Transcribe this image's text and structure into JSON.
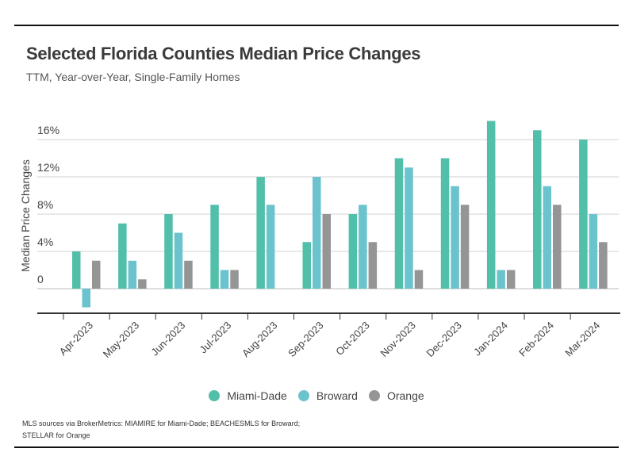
{
  "title": "Selected Florida Counties Median Price Changes",
  "subtitle": "TTM, Year-over-Year, Single-Family Homes",
  "source_line1": "MLS sources via BrokerMetrics: MIAMIRE for Miami-Dade; BEACHESMLS for Broward;",
  "source_line2": "STELLAR for Orange",
  "colors": {
    "miami_dade": "#52bfaa",
    "broward": "#6bc3cd",
    "orange": "#959595"
  },
  "legend": [
    {
      "label": "Miami-Dade",
      "color": "#52bfaa"
    },
    {
      "label": "Broward",
      "color": "#6bc3cd"
    },
    {
      "label": "Orange",
      "color": "#959595"
    }
  ],
  "chart_data": {
    "type": "bar",
    "title": "Selected Florida Counties Median Price Changes",
    "subtitle": "TTM, Year-over-Year, Single-Family Homes",
    "xlabel": "",
    "ylabel": "Median Price Changes",
    "ylim": [
      -4,
      18
    ],
    "yticks": [
      0,
      4,
      8,
      12,
      16
    ],
    "ytick_labels": [
      "0",
      "4%",
      "8%",
      "12%",
      "16%"
    ],
    "grid": true,
    "legend_position": "bottom",
    "categories": [
      "Apr-2023",
      "May-2023",
      "Jun-2023",
      "Jul-2023",
      "Aug-2023",
      "Sep-2023",
      "Oct-2023",
      "Nov-2023",
      "Dec-2023",
      "Jan-2024",
      "Feb-2024",
      "Mar-2024"
    ],
    "series": [
      {
        "name": "Miami-Dade",
        "values": [
          4,
          7,
          8,
          9,
          12,
          5,
          8,
          14,
          14,
          18,
          17,
          16
        ]
      },
      {
        "name": "Broward",
        "values": [
          -2,
          3,
          6,
          2,
          9,
          12,
          9,
          13,
          11,
          2,
          11,
          8
        ]
      },
      {
        "name": "Orange",
        "values": [
          3,
          1,
          3,
          2,
          0,
          8,
          5,
          2,
          9,
          2,
          9,
          5
        ]
      }
    ]
  }
}
